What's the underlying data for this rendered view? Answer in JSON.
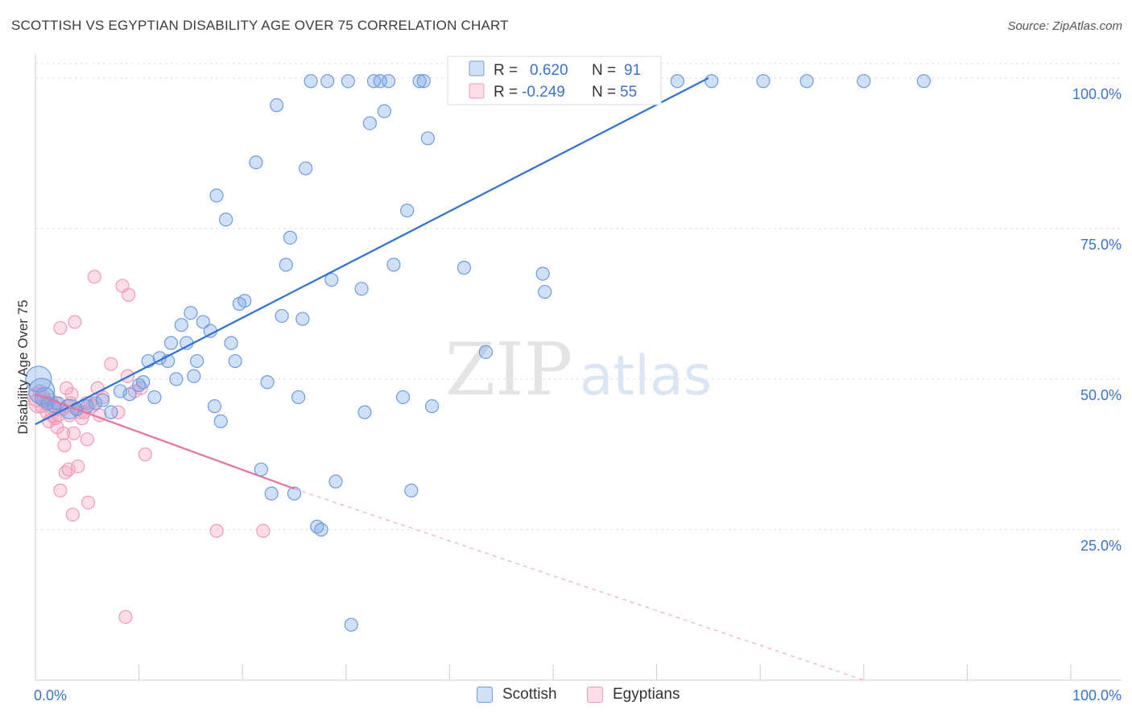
{
  "title": "SCOTTISH VS EGYPTIAN DISABILITY AGE OVER 75 CORRELATION CHART",
  "source": "Source: ZipAtlas.com",
  "watermark": {
    "zip": "ZIP",
    "atlas": "atlas"
  },
  "colors": {
    "blue": "#2f6fd6",
    "blue_fill": "rgba(120,165,230,0.35)",
    "blue_stroke": "#6f9be0",
    "pink": "#e8729c",
    "pink_fill": "rgba(245,160,190,0.35)",
    "pink_stroke": "#ee9ab8",
    "tick_label": "#3a72cc",
    "grid": "#dddddd"
  },
  "legend": {
    "rows": [
      {
        "r_label": "R =",
        "r_value": "0.620",
        "n_label": "N =",
        "n_value": "91",
        "color": "blue"
      },
      {
        "r_label": "R =",
        "r_value": "-0.249",
        "n_label": "N =",
        "n_value": "55",
        "color": "pink"
      }
    ]
  },
  "bottom_legend": [
    {
      "label": "Scottish",
      "color": "blue"
    },
    {
      "label": "Egyptians",
      "color": "pink"
    }
  ],
  "chart_data": {
    "type": "scatter",
    "ylabel": "Disability Age Over 75",
    "xlabel": "",
    "xlim": [
      0,
      100
    ],
    "ylim": [
      0,
      104
    ],
    "x_tick_labels": [
      {
        "value": 0,
        "label": "0.0%"
      },
      {
        "value": 100,
        "label": "100.0%"
      }
    ],
    "y_tick_labels": [
      {
        "value": 25,
        "label": "25.0%"
      },
      {
        "value": 50,
        "label": "50.0%"
      },
      {
        "value": 75,
        "label": "75.0%"
      },
      {
        "value": 100,
        "label": "100.0%"
      }
    ],
    "series": [
      {
        "name": "Scottish",
        "color": "blue",
        "trend": {
          "x": [
            0,
            65
          ],
          "y": [
            42.5,
            100
          ]
        },
        "points": [
          [
            0.3,
            50,
            2
          ],
          [
            0.6,
            48,
            2
          ],
          [
            0.9,
            47,
            1.5
          ],
          [
            1.2,
            46,
            1
          ],
          [
            1.8,
            45.5,
            1
          ],
          [
            2.2,
            46,
            1
          ],
          [
            3.3,
            45,
            1.5
          ],
          [
            4.0,
            45,
            1
          ],
          [
            5.0,
            45.5,
            1
          ],
          [
            5.8,
            46,
            1
          ],
          [
            6.5,
            46.5,
            1
          ],
          [
            7.3,
            44.5,
            1
          ],
          [
            8.2,
            48,
            1
          ],
          [
            9.1,
            47.5,
            1
          ],
          [
            10.0,
            49,
            1
          ],
          [
            10.4,
            49.5,
            1
          ],
          [
            10.9,
            53,
            1
          ],
          [
            11.5,
            47,
            1
          ],
          [
            12.0,
            53.5,
            1
          ],
          [
            12.8,
            53,
            1
          ],
          [
            13.1,
            56,
            1
          ],
          [
            13.6,
            50,
            1
          ],
          [
            14.1,
            59,
            1
          ],
          [
            14.6,
            56,
            1
          ],
          [
            15.0,
            61,
            1
          ],
          [
            15.3,
            50.5,
            1
          ],
          [
            15.6,
            53,
            1
          ],
          [
            16.2,
            59.5,
            1
          ],
          [
            16.9,
            58,
            1
          ],
          [
            17.3,
            45.5,
            1
          ],
          [
            17.5,
            80.5,
            1
          ],
          [
            17.9,
            43,
            1
          ],
          [
            18.4,
            76.5,
            1
          ],
          [
            18.9,
            56,
            1
          ],
          [
            19.3,
            53,
            1
          ],
          [
            19.7,
            62.5,
            1
          ],
          [
            20.2,
            63,
            1
          ],
          [
            21.3,
            86,
            1
          ],
          [
            21.8,
            35,
            1
          ],
          [
            22.4,
            49.5,
            1
          ],
          [
            22.8,
            31,
            1
          ],
          [
            23.3,
            95.5,
            1
          ],
          [
            23.8,
            60.5,
            1
          ],
          [
            24.2,
            69,
            1
          ],
          [
            24.6,
            73.5,
            1
          ],
          [
            25.0,
            31,
            1
          ],
          [
            25.4,
            47,
            1
          ],
          [
            25.8,
            60,
            1
          ],
          [
            26.1,
            85,
            1
          ],
          [
            26.6,
            99.5,
            1
          ],
          [
            27.2,
            25.5,
            1
          ],
          [
            27.6,
            25,
            1
          ],
          [
            28.2,
            99.5,
            1
          ],
          [
            28.6,
            66.5,
            1
          ],
          [
            29.0,
            33,
            1
          ],
          [
            30.2,
            99.5,
            1
          ],
          [
            30.5,
            9.2,
            1
          ],
          [
            31.5,
            65,
            1
          ],
          [
            31.8,
            44.5,
            1
          ],
          [
            32.3,
            92.5,
            1
          ],
          [
            32.7,
            99.5,
            1
          ],
          [
            33.3,
            99.5,
            1
          ],
          [
            33.7,
            94.5,
            1
          ],
          [
            34.1,
            99.5,
            1
          ],
          [
            34.6,
            69,
            1
          ],
          [
            35.5,
            47,
            1
          ],
          [
            35.9,
            78,
            1
          ],
          [
            36.3,
            31.5,
            1
          ],
          [
            37.1,
            99.5,
            1
          ],
          [
            37.5,
            99.5,
            1
          ],
          [
            37.9,
            90,
            1
          ],
          [
            38.3,
            45.5,
            1
          ],
          [
            40.6,
            99.5,
            1
          ],
          [
            41.4,
            68.5,
            1
          ],
          [
            42.6,
            99.5,
            1
          ],
          [
            43.5,
            54.5,
            1
          ],
          [
            44.3,
            99.5,
            1
          ],
          [
            45.5,
            99.5,
            1
          ],
          [
            47.0,
            99.5,
            1
          ],
          [
            49.0,
            67.5,
            1
          ],
          [
            49.2,
            64.5,
            1
          ],
          [
            53.0,
            99.5,
            1
          ],
          [
            55.5,
            99.5,
            1
          ],
          [
            57.2,
            99.5,
            1
          ],
          [
            59.0,
            99.5,
            1
          ],
          [
            62.0,
            99.5,
            1
          ],
          [
            65.3,
            99.5,
            1
          ],
          [
            70.3,
            99.5,
            1
          ],
          [
            85.8,
            99.5,
            1
          ],
          [
            74.5,
            99.5,
            1
          ],
          [
            80.0,
            99.5,
            1
          ]
        ]
      },
      {
        "name": "Egyptians",
        "color": "pink",
        "trend": {
          "x": [
            0,
            25
          ],
          "y": [
            47.5,
            31.8
          ]
        },
        "trend_dashed": {
          "x": [
            25,
            80
          ],
          "y": [
            31.8,
            0
          ]
        },
        "points": [
          [
            0.2,
            47,
            1.5
          ],
          [
            0.3,
            46,
            1.5
          ],
          [
            0.4,
            48,
            1
          ],
          [
            0.6,
            45.5,
            1
          ],
          [
            0.8,
            47,
            1
          ],
          [
            1.0,
            46,
            1
          ],
          [
            1.1,
            44.5,
            1
          ],
          [
            1.3,
            43,
            1
          ],
          [
            1.5,
            46.5,
            1
          ],
          [
            1.6,
            44,
            1
          ],
          [
            1.8,
            45,
            1
          ],
          [
            1.9,
            43.5,
            1
          ],
          [
            2.1,
            42,
            1
          ],
          [
            2.2,
            44,
            1
          ],
          [
            2.4,
            58.5,
            1
          ],
          [
            2.4,
            31.5,
            1
          ],
          [
            2.6,
            45,
            1
          ],
          [
            2.7,
            41,
            1
          ],
          [
            2.8,
            39,
            1
          ],
          [
            2.9,
            34.5,
            1
          ],
          [
            3.0,
            48.5,
            1
          ],
          [
            3.1,
            45.5,
            1
          ],
          [
            3.2,
            35,
            1
          ],
          [
            3.3,
            44,
            1
          ],
          [
            3.4,
            46,
            1
          ],
          [
            3.5,
            47.5,
            1
          ],
          [
            3.6,
            27.5,
            1
          ],
          [
            3.7,
            41,
            1
          ],
          [
            3.8,
            59.5,
            1
          ],
          [
            4.0,
            45,
            1
          ],
          [
            4.1,
            35.5,
            1
          ],
          [
            4.3,
            44.5,
            1
          ],
          [
            4.5,
            43.5,
            1
          ],
          [
            4.7,
            44.5,
            1
          ],
          [
            4.9,
            46,
            1
          ],
          [
            5.0,
            40,
            1
          ],
          [
            5.1,
            29.5,
            1
          ],
          [
            5.3,
            46,
            1
          ],
          [
            5.5,
            45.5,
            1
          ],
          [
            5.7,
            67,
            1
          ],
          [
            6.0,
            48.5,
            1
          ],
          [
            6.2,
            44,
            1
          ],
          [
            6.5,
            47,
            1
          ],
          [
            7.3,
            52.5,
            1
          ],
          [
            8.0,
            44.5,
            1
          ],
          [
            8.4,
            65.5,
            1
          ],
          [
            8.7,
            10.5,
            1
          ],
          [
            8.9,
            50.5,
            1
          ],
          [
            9.0,
            64,
            1
          ],
          [
            9.6,
            48,
            1
          ],
          [
            10.2,
            48.5,
            1
          ],
          [
            10.6,
            37.5,
            1
          ],
          [
            17.5,
            24.8,
            1
          ],
          [
            22.0,
            24.8,
            1
          ],
          [
            2.0,
            46,
            1
          ]
        ]
      }
    ]
  }
}
